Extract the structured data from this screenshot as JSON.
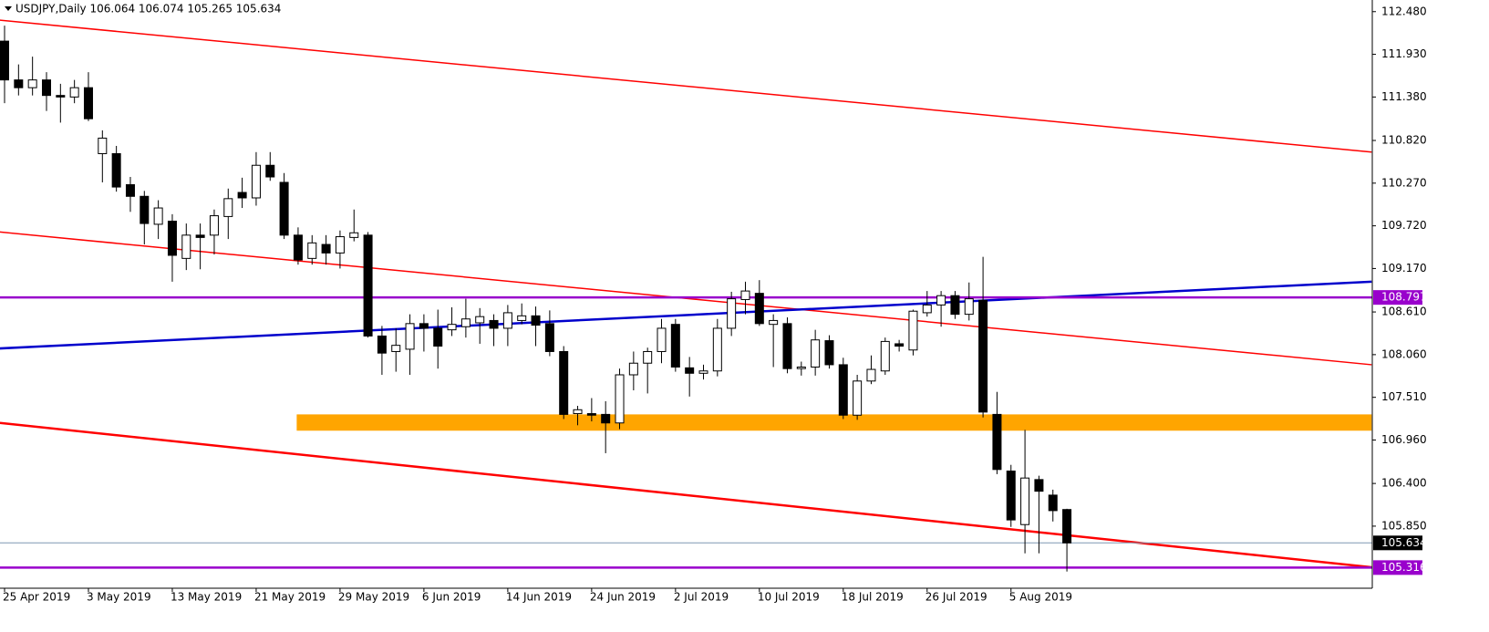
{
  "chart_data": {
    "type": "candlestick",
    "title": "USDJPY,Daily  106.064 106.074 105.265 105.634",
    "categories": [
      "25 Apr 2019",
      null,
      null,
      null,
      null,
      null,
      "3 May 2019",
      null,
      null,
      null,
      null,
      null,
      "13 May 2019",
      null,
      null,
      null,
      null,
      null,
      "21 May 2019",
      null,
      null,
      null,
      null,
      null,
      "29 May 2019",
      null,
      null,
      null,
      null,
      null,
      "6 Jun 2019",
      null,
      null,
      null,
      null,
      null,
      "14 Jun 2019",
      null,
      null,
      null,
      null,
      null,
      "24 Jun 2019",
      null,
      null,
      null,
      null,
      null,
      "2 Jul 2019",
      null,
      null,
      null,
      null,
      null,
      "10 Jul 2019",
      null,
      null,
      null,
      null,
      null,
      "18 Jul 2019",
      null,
      null,
      null,
      null,
      null,
      "26 Jul 2019",
      null,
      null,
      null,
      null,
      null,
      "5 Aug 2019",
      null,
      null,
      null,
      null
    ],
    "open": [
      112.1,
      111.6,
      111.5,
      111.6,
      111.4,
      111.38,
      111.5,
      110.65,
      110.65,
      110.25,
      110.1,
      109.74,
      109.78,
      109.3,
      109.6,
      109.6,
      109.84,
      110.15,
      110.08,
      110.5,
      110.28,
      109.6,
      109.3,
      109.48,
      109.37,
      109.57,
      109.6,
      108.3,
      108.1,
      108.13,
      108.46,
      108.4,
      108.38,
      108.42,
      108.47,
      108.5,
      108.4,
      108.5,
      108.56,
      108.46,
      108.1,
      107.3,
      107.3,
      107.29,
      107.18,
      107.8,
      107.95,
      108.1,
      108.45,
      107.89,
      107.82,
      107.85,
      108.4,
      108.77,
      108.85,
      108.45,
      108.46,
      107.88,
      107.9,
      108.24,
      107.93,
      107.28,
      107.72,
      107.85,
      108.2,
      108.12,
      108.6,
      108.7,
      108.82,
      108.58,
      108.76,
      107.29,
      106.56,
      105.87,
      106.45,
      106.25,
      106.064
    ],
    "high": [
      112.3,
      111.8,
      111.9,
      111.7,
      111.55,
      111.6,
      111.7,
      110.95,
      110.75,
      110.35,
      110.17,
      110.05,
      109.87,
      109.75,
      109.75,
      109.93,
      110.2,
      110.34,
      110.67,
      110.67,
      110.4,
      109.7,
      109.6,
      109.6,
      109.66,
      109.93,
      109.64,
      108.43,
      108.4,
      108.58,
      108.58,
      108.64,
      108.67,
      108.78,
      108.66,
      108.58,
      108.7,
      108.72,
      108.68,
      108.63,
      108.17,
      107.4,
      107.5,
      107.46,
      107.88,
      108.1,
      108.15,
      108.52,
      108.52,
      108.03,
      107.93,
      108.52,
      108.87,
      109.0,
      109.02,
      108.58,
      108.54,
      107.97,
      108.38,
      108.31,
      108.02,
      107.8,
      108.05,
      108.28,
      108.25,
      108.64,
      108.88,
      108.88,
      108.88,
      108.99,
      109.32,
      107.58,
      106.64,
      107.09,
      106.5,
      106.32,
      106.074
    ],
    "low": [
      111.3,
      111.4,
      111.4,
      111.2,
      111.05,
      111.3,
      111.07,
      110.28,
      110.16,
      109.9,
      109.48,
      109.55,
      109.0,
      109.15,
      109.16,
      109.35,
      109.55,
      109.95,
      109.98,
      110.3,
      109.55,
      109.22,
      109.22,
      109.22,
      109.17,
      109.52,
      108.28,
      107.8,
      107.84,
      107.8,
      108.1,
      107.88,
      108.3,
      108.28,
      108.2,
      108.17,
      108.17,
      108.45,
      108.17,
      108.04,
      107.23,
      107.15,
      107.2,
      106.79,
      107.1,
      107.6,
      107.56,
      107.95,
      107.84,
      107.52,
      107.74,
      107.78,
      108.3,
      108.58,
      108.43,
      107.9,
      107.82,
      107.79,
      107.79,
      107.88,
      107.23,
      107.22,
      107.68,
      107.8,
      108.1,
      108.05,
      108.55,
      108.42,
      108.52,
      108.5,
      107.25,
      106.52,
      105.84,
      105.5,
      105.5,
      105.91,
      105.265
    ],
    "close": [
      111.6,
      111.5,
      111.6,
      111.4,
      111.38,
      111.5,
      111.1,
      110.85,
      110.22,
      110.1,
      109.75,
      109.95,
      109.34,
      109.6,
      109.57,
      109.85,
      110.07,
      110.08,
      110.5,
      110.35,
      109.6,
      109.28,
      109.5,
      109.37,
      109.58,
      109.63,
      108.3,
      108.08,
      108.18,
      108.46,
      108.4,
      108.17,
      108.45,
      108.52,
      108.55,
      108.4,
      108.6,
      108.56,
      108.44,
      108.1,
      107.29,
      107.35,
      107.28,
      107.18,
      107.8,
      107.95,
      108.1,
      108.4,
      107.9,
      107.82,
      107.85,
      108.4,
      108.78,
      108.88,
      108.46,
      108.5,
      107.88,
      107.9,
      108.25,
      107.93,
      107.28,
      107.72,
      107.87,
      108.23,
      108.17,
      108.62,
      108.7,
      108.82,
      108.58,
      108.78,
      107.32,
      106.58,
      105.93,
      106.47,
      106.3,
      106.05,
      105.634
    ],
    "up_color": "#ffffff",
    "down_color": "#000000",
    "ylim": [
      105.05,
      112.63
    ],
    "yticks": [
      {
        "value": 112.48,
        "label": "112.480"
      },
      {
        "value": 111.93,
        "label": "111.930"
      },
      {
        "value": 111.38,
        "label": "111.380"
      },
      {
        "value": 110.82,
        "label": "110.820"
      },
      {
        "value": 110.27,
        "label": "110.270"
      },
      {
        "value": 109.72,
        "label": "109.720"
      },
      {
        "value": 109.17,
        "label": "109.170"
      },
      {
        "value": 108.61,
        "label": "108.610"
      },
      {
        "value": 108.06,
        "label": "108.060"
      },
      {
        "value": 107.51,
        "label": "107.510"
      },
      {
        "value": 106.96,
        "label": "106.960"
      },
      {
        "value": 106.4,
        "label": "106.400"
      },
      {
        "value": 105.85,
        "label": "105.850"
      }
    ],
    "hlines": [
      {
        "value": 108.797,
        "color": "#9900cc"
      },
      {
        "value": 105.316,
        "color": "#9900cc"
      },
      {
        "value": 105.634,
        "color": "#7f97b2",
        "label_color": "#000000"
      }
    ],
    "trendlines": [
      {
        "x": [
          -0.33,
          97.8
        ],
        "values": [
          112.37,
          110.67
        ],
        "color": "#ff0000"
      },
      {
        "x": [
          -0.33,
          97.8
        ],
        "values": [
          109.64,
          107.93
        ],
        "color": "#ff0000"
      },
      {
        "x": [
          -0.33,
          97.8
        ],
        "values": [
          107.18,
          105.32
        ],
        "color": "#ff0000"
      },
      {
        "x": [
          -0.33,
          97.8
        ],
        "values": [
          108.14,
          109.0
        ],
        "color": "#0000cc"
      }
    ],
    "zone": {
      "x": [
        20.9,
        97.8
      ],
      "values": [
        107.29,
        107.08
      ],
      "color": "#ffa500"
    }
  }
}
